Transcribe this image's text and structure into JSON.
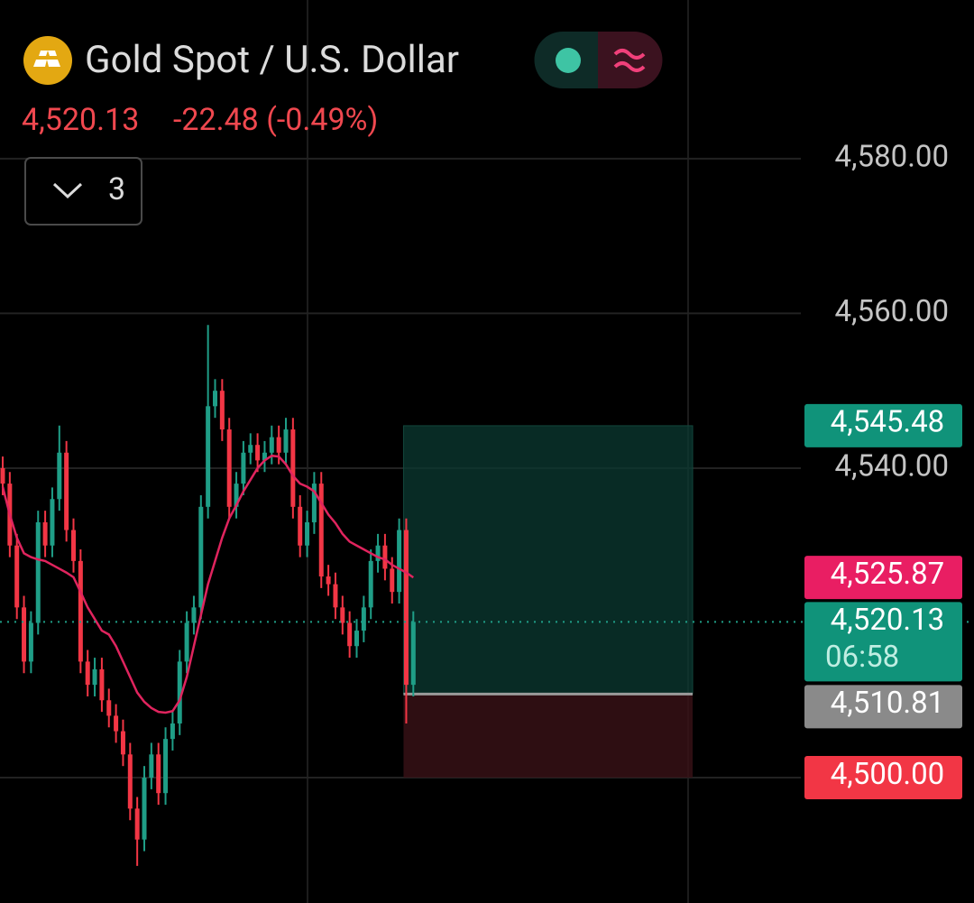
{
  "header": {
    "title": "Gold Spot / U.S. Dollar",
    "price": "4,520.13",
    "change": "-22.48 (-0.49%)",
    "indicators": "3"
  },
  "chart_data": {
    "type": "candlestick",
    "ylim": [
      4483.8,
      4600.5
    ],
    "yticks": [
      {
        "value": 4540,
        "label": "4,540.00"
      },
      {
        "value": 4560,
        "label": "4,560.00"
      },
      {
        "value": 4580,
        "label": "4,580.00"
      }
    ],
    "up_color": "#1f9e87",
    "down_color": "#f23645",
    "open": [
      4540,
      4538,
      4530,
      4522,
      4515,
      4520,
      4533,
      4530,
      4536,
      4542,
      4532,
      4528,
      4515,
      4512,
      4514,
      4510,
      4508,
      4506,
      4503,
      4496,
      4492,
      4500,
      4503,
      4498,
      4505,
      4507,
      4515,
      4520,
      4522,
      4535,
      4548,
      4550,
      4545,
      4535,
      4538,
      4542,
      4543,
      4541,
      4542,
      4544,
      4542,
      4545,
      4535,
      4530,
      4533,
      4538,
      4526,
      4525,
      4522,
      4520,
      4517,
      4519,
      4522,
      4528,
      4530,
      4527,
      4524,
      4532,
      4512
    ],
    "high": [
      4541.5,
      4539.5,
      4531.5,
      4523.5,
      4521.5,
      4534.5,
      4534.5,
      4537.5,
      4545.5,
      4543.5,
      4533.5,
      4529.5,
      4516.5,
      4515.5,
      4515.5,
      4511.5,
      4509.5,
      4507.5,
      4504.5,
      4497.5,
      4501.5,
      4504.5,
      4504.5,
      4506.5,
      4508.5,
      4516.5,
      4521.5,
      4523.5,
      4536.5,
      4558.5,
      4551.5,
      4551.5,
      4546.5,
      4539.5,
      4543.5,
      4544.5,
      4544.5,
      4543.5,
      4545.5,
      4545.5,
      4546.5,
      4546.5,
      4536.5,
      4534.5,
      4539.5,
      4539.5,
      4527.5,
      4526.5,
      4523.5,
      4521.5,
      4520.5,
      4523.5,
      4529.5,
      4531.5,
      4531.5,
      4528.5,
      4533.5,
      4533.5,
      4521.5
    ],
    "low": [
      4536.5,
      4528.5,
      4520.5,
      4513.5,
      4513.5,
      4518.5,
      4528.5,
      4528.5,
      4534.5,
      4530.5,
      4526.5,
      4513.5,
      4510.5,
      4510.5,
      4508.5,
      4506.5,
      4504.5,
      4501.5,
      4494.5,
      4488.6,
      4490.5,
      4498.5,
      4496.5,
      4496.5,
      4503.5,
      4505.5,
      4513.5,
      4518.5,
      4520.5,
      4533.5,
      4546.5,
      4543.5,
      4533.5,
      4533.5,
      4536.5,
      4540.5,
      4539.5,
      4539.5,
      4540.5,
      4540.5,
      4540.5,
      4533.5,
      4528.5,
      4528.5,
      4531.5,
      4524.5,
      4523.5,
      4520.5,
      4518.5,
      4515.5,
      4515.5,
      4517.5,
      4520.5,
      4526.5,
      4525.5,
      4522.5,
      4522.5,
      4507,
      4510.5
    ],
    "close": [
      4538,
      4530,
      4522,
      4515,
      4520,
      4533,
      4530,
      4536,
      4542,
      4532,
      4528,
      4515,
      4512,
      4514,
      4510,
      4508,
      4506,
      4503,
      4496,
      4492,
      4500,
      4503,
      4498,
      4505,
      4507,
      4515,
      4520,
      4522,
      4535,
      4548,
      4550,
      4545,
      4535,
      4538,
      4542,
      4543,
      4541,
      4542,
      4544,
      4542,
      4545,
      4535,
      4530,
      4533,
      4538,
      4526,
      4525,
      4522,
      4520,
      4517,
      4519,
      4522,
      4528,
      4530,
      4527,
      4524,
      4532,
      4512,
      4520.13
    ],
    "ma": {
      "color": "#e0245e",
      "values": [
        4537.6,
        4534,
        4531,
        4529,
        4528.5,
        4528.2,
        4528,
        4527.5,
        4527,
        4526.5,
        4525.9,
        4524,
        4522,
        4520.5,
        4519,
        4518.5,
        4517,
        4515,
        4513,
        4511,
        4509.8,
        4509,
        4508.5,
        4508.4,
        4508.6,
        4510,
        4513,
        4517,
        4521,
        4525,
        4528,
        4531,
        4533.5,
        4535.2,
        4537,
        4538.5,
        4540,
        4541,
        4541.6,
        4541.5,
        4540.5,
        4539,
        4538,
        4537.6,
        4537,
        4535.5,
        4534,
        4532.9,
        4531.5,
        4530.5,
        4530,
        4529.5,
        4529,
        4528.5,
        4528.2,
        4527.5,
        4527,
        4526.5,
        4525.87
      ],
      "last": {
        "value": 4525.87,
        "label": "4,525.87"
      }
    },
    "last_price": {
      "value": 4520.13,
      "label": "4,520.13"
    },
    "countdown": "06:58",
    "position": {
      "target": {
        "value": 4545.48,
        "label": "4,545.48"
      },
      "entry": {
        "value": 4510.81,
        "label": "4,510.81"
      },
      "stop": {
        "value": 4500,
        "label": "4,500.00"
      }
    }
  }
}
